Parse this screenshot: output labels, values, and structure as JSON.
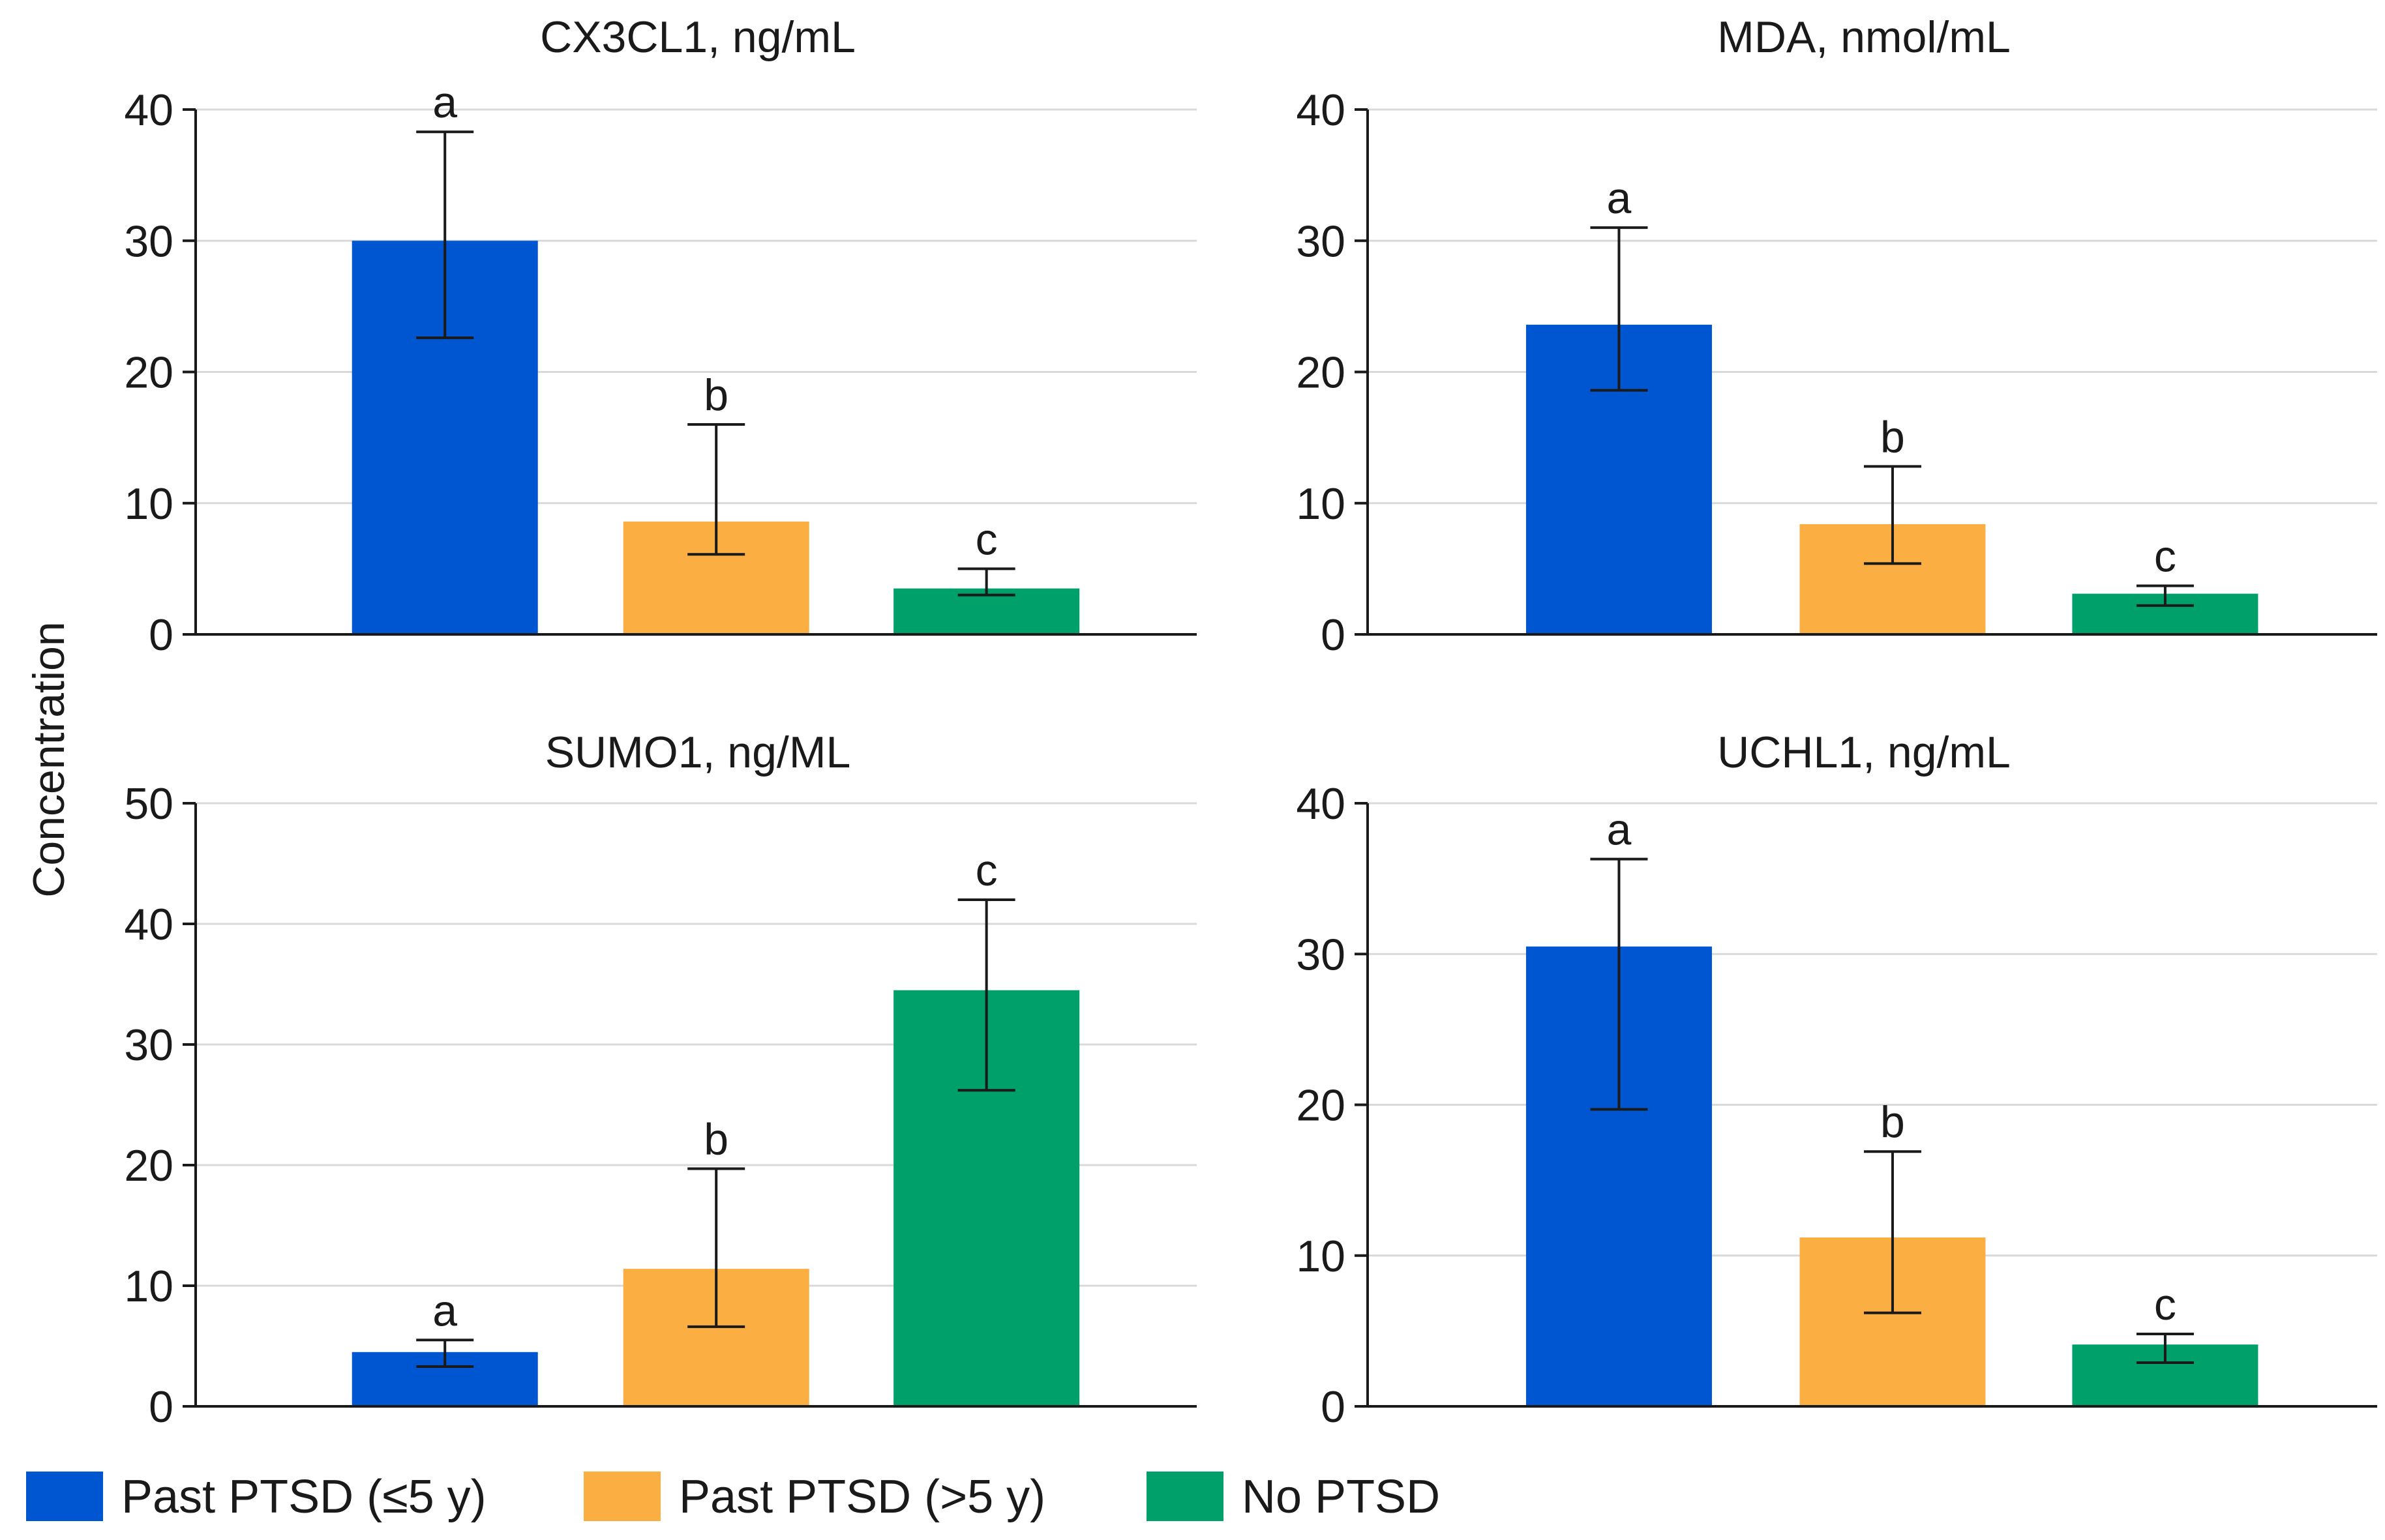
{
  "figure": {
    "y_axis_title": "Concentration",
    "colors": {
      "series_1": "#0055D0",
      "series_2": "#FBAE42",
      "series_3": "#00A06B",
      "axis": "#1a1a1a",
      "grid": "#d9d9d9"
    }
  },
  "legend": {
    "items": [
      {
        "label": "Past PTSD (≤5 y)",
        "color": "#0055D0"
      },
      {
        "label": "Past PTSD (>5 y)",
        "color": "#FBAE42"
      },
      {
        "label": "No PTSD",
        "color": "#00A06B"
      }
    ]
  },
  "chart_data": [
    {
      "type": "bar",
      "title": "CX3CL1, ng/mL",
      "ylabel": "Concentration",
      "ylim": [
        0,
        40
      ],
      "yticks": [
        0,
        10,
        20,
        30,
        40
      ],
      "categories": [
        "Past PTSD (≤5 y)",
        "Past PTSD (>5 y)",
        "No PTSD"
      ],
      "values": [
        30,
        8.6,
        3.5
      ],
      "error_low": [
        22.6,
        6.1,
        3.0
      ],
      "error_high": [
        38.3,
        16.0,
        5.0
      ],
      "significance": [
        "a",
        "b",
        "c"
      ]
    },
    {
      "type": "bar",
      "title": "MDA, nmol/mL",
      "ylabel": "Concentration",
      "ylim": [
        0,
        40
      ],
      "yticks": [
        0,
        10,
        20,
        30,
        40
      ],
      "categories": [
        "Past PTSD (≤5 y)",
        "Past PTSD (>5 y)",
        "No PTSD"
      ],
      "values": [
        23.6,
        8.4,
        3.1
      ],
      "error_low": [
        18.6,
        5.4,
        2.2
      ],
      "error_high": [
        31.0,
        12.8,
        3.7
      ],
      "significance": [
        "a",
        "b",
        "c"
      ]
    },
    {
      "type": "bar",
      "title": "SUMO1, ng/ML",
      "ylabel": "Concentration",
      "ylim": [
        0,
        50
      ],
      "yticks": [
        0,
        10,
        20,
        30,
        40,
        50
      ],
      "categories": [
        "Past PTSD (≤5 y)",
        "Past PTSD (>5 y)",
        "No PTSD"
      ],
      "values": [
        4.5,
        11.4,
        34.5
      ],
      "error_low": [
        3.3,
        6.6,
        26.2
      ],
      "error_high": [
        5.5,
        19.7,
        42.0
      ],
      "significance": [
        "a",
        "b",
        "c"
      ]
    },
    {
      "type": "bar",
      "title": "UCHL1, ng/mL",
      "ylabel": "Concentration",
      "ylim": [
        0,
        40
      ],
      "yticks": [
        0,
        10,
        20,
        30,
        40
      ],
      "categories": [
        "Past PTSD (≤5 y)",
        "Past PTSD (>5 y)",
        "No PTSD"
      ],
      "values": [
        30.5,
        11.2,
        4.1
      ],
      "error_low": [
        19.7,
        6.2,
        2.9
      ],
      "error_high": [
        36.3,
        16.9,
        4.8
      ],
      "significance": [
        "a",
        "b",
        "c"
      ]
    }
  ]
}
